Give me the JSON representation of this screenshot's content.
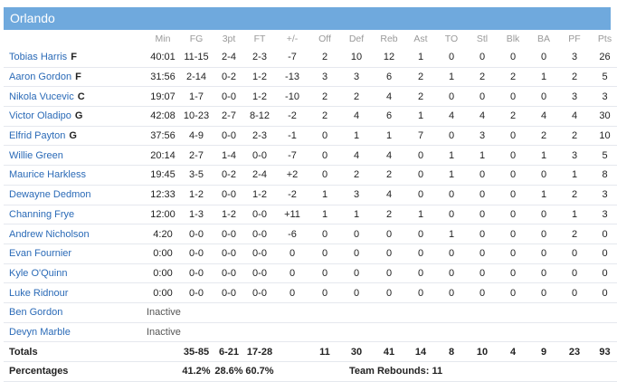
{
  "team": "Orlando",
  "columns": [
    "",
    "Min",
    "FG",
    "3pt",
    "FT",
    "+/-",
    "Off",
    "Def",
    "Reb",
    "Ast",
    "TO",
    "Stl",
    "Blk",
    "BA",
    "PF",
    "Pts"
  ],
  "players": [
    {
      "name": "Tobias Harris",
      "pos": "F",
      "stats": [
        "40:01",
        "11-15",
        "2-4",
        "2-3",
        "-7",
        "2",
        "10",
        "12",
        "1",
        "0",
        "0",
        "0",
        "0",
        "3",
        "26"
      ]
    },
    {
      "name": "Aaron Gordon",
      "pos": "F",
      "stats": [
        "31:56",
        "2-14",
        "0-2",
        "1-2",
        "-13",
        "3",
        "3",
        "6",
        "2",
        "1",
        "2",
        "2",
        "1",
        "2",
        "5"
      ]
    },
    {
      "name": "Nikola Vucevic",
      "pos": "C",
      "stats": [
        "19:07",
        "1-7",
        "0-0",
        "1-2",
        "-10",
        "2",
        "2",
        "4",
        "2",
        "0",
        "0",
        "0",
        "0",
        "3",
        "3"
      ]
    },
    {
      "name": "Victor Oladipo",
      "pos": "G",
      "stats": [
        "42:08",
        "10-23",
        "2-7",
        "8-12",
        "-2",
        "2",
        "4",
        "6",
        "1",
        "4",
        "4",
        "2",
        "4",
        "4",
        "30"
      ]
    },
    {
      "name": "Elfrid Payton",
      "pos": "G",
      "stats": [
        "37:56",
        "4-9",
        "0-0",
        "2-3",
        "-1",
        "0",
        "1",
        "1",
        "7",
        "0",
        "3",
        "0",
        "2",
        "2",
        "10"
      ]
    },
    {
      "name": "Willie Green",
      "pos": "",
      "stats": [
        "20:14",
        "2-7",
        "1-4",
        "0-0",
        "-7",
        "0",
        "4",
        "4",
        "0",
        "1",
        "1",
        "0",
        "1",
        "3",
        "5"
      ]
    },
    {
      "name": "Maurice Harkless",
      "pos": "",
      "stats": [
        "19:45",
        "3-5",
        "0-2",
        "2-4",
        "+2",
        "0",
        "2",
        "2",
        "0",
        "1",
        "0",
        "0",
        "0",
        "1",
        "8"
      ]
    },
    {
      "name": "Dewayne Dedmon",
      "pos": "",
      "stats": [
        "12:33",
        "1-2",
        "0-0",
        "1-2",
        "-2",
        "1",
        "3",
        "4",
        "0",
        "0",
        "0",
        "0",
        "1",
        "2",
        "3"
      ]
    },
    {
      "name": "Channing Frye",
      "pos": "",
      "stats": [
        "12:00",
        "1-3",
        "1-2",
        "0-0",
        "+11",
        "1",
        "1",
        "2",
        "1",
        "0",
        "0",
        "0",
        "0",
        "1",
        "3"
      ]
    },
    {
      "name": "Andrew Nicholson",
      "pos": "",
      "stats": [
        "4:20",
        "0-0",
        "0-0",
        "0-0",
        "-6",
        "0",
        "0",
        "0",
        "0",
        "1",
        "0",
        "0",
        "0",
        "2",
        "0"
      ]
    },
    {
      "name": "Evan Fournier",
      "pos": "",
      "stats": [
        "0:00",
        "0-0",
        "0-0",
        "0-0",
        "0",
        "0",
        "0",
        "0",
        "0",
        "0",
        "0",
        "0",
        "0",
        "0",
        "0"
      ]
    },
    {
      "name": "Kyle O'Quinn",
      "pos": "",
      "stats": [
        "0:00",
        "0-0",
        "0-0",
        "0-0",
        "0",
        "0",
        "0",
        "0",
        "0",
        "0",
        "0",
        "0",
        "0",
        "0",
        "0"
      ]
    },
    {
      "name": "Luke Ridnour",
      "pos": "",
      "stats": [
        "0:00",
        "0-0",
        "0-0",
        "0-0",
        "0",
        "0",
        "0",
        "0",
        "0",
        "0",
        "0",
        "0",
        "0",
        "0",
        "0"
      ]
    },
    {
      "name": "Ben Gordon",
      "pos": "",
      "inactive": "Inactive"
    },
    {
      "name": "Devyn Marble",
      "pos": "",
      "inactive": "Inactive"
    }
  ],
  "totals": {
    "label": "Totals",
    "stats": [
      "",
      "35-85",
      "6-21",
      "17-28",
      "",
      "11",
      "30",
      "41",
      "14",
      "8",
      "10",
      "4",
      "9",
      "23",
      "93"
    ]
  },
  "percentages": {
    "label": "Percentages",
    "fg": "41.2%",
    "three": "28.6%",
    "ft": "60.7%",
    "team_rebounds": "Team Rebounds: 11"
  }
}
